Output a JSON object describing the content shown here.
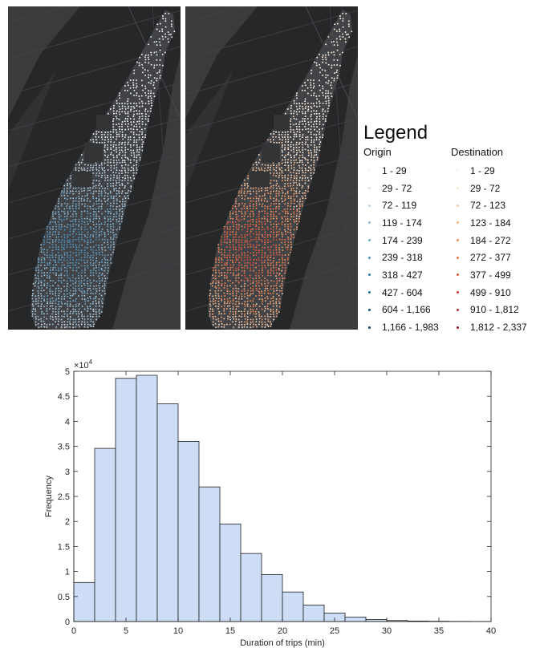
{
  "legend": {
    "title": "Legend",
    "origin": {
      "header": "Origin",
      "bins": [
        "1 - 29",
        "29 - 72",
        "72 - 119",
        "119 - 174",
        "174 - 239",
        "239 - 318",
        "318 - 427",
        "427 - 604",
        "604 - 1,166",
        "1,166 - 1,983"
      ],
      "colors": [
        "#f2f5f8",
        "#d6e4ee",
        "#b6d2e4",
        "#93c0d8",
        "#6fa9cd",
        "#4d94c0",
        "#2f7eb0",
        "#1c679b",
        "#12517f",
        "#0b3f67"
      ]
    },
    "destination": {
      "header": "Destination",
      "bins": [
        "1 - 29",
        "29 - 72",
        "72 - 123",
        "123 - 184",
        "184 - 272",
        "272 - 377",
        "377 - 499",
        "499 - 910",
        "910 - 1,812",
        "1,812 - 2,337"
      ],
      "colors": [
        "#fdf3e8",
        "#fbe3cc",
        "#f8cda9",
        "#f5b183",
        "#f0935f",
        "#e8734a",
        "#da553a",
        "#c63b2e",
        "#ad2523",
        "#8e141b"
      ]
    }
  },
  "chart_data": {
    "type": "bar",
    "xlabel": "Duration of trips (min)",
    "ylabel": "Frequency",
    "exponent_label": "×10",
    "exponent": "4",
    "bar_color": "#ccddf5",
    "bin_edges": [
      0,
      2,
      4,
      6,
      8,
      10,
      12,
      14,
      16,
      18,
      20,
      22,
      24,
      26,
      28,
      30,
      32,
      34,
      36,
      38,
      40
    ],
    "values": [
      7800,
      34600,
      48600,
      49200,
      43500,
      36000,
      26900,
      19500,
      13600,
      9400,
      5900,
      3300,
      1700,
      900,
      400,
      200,
      100,
      60,
      30,
      10
    ],
    "xlim": [
      0,
      40
    ],
    "ylim": [
      0,
      50000
    ],
    "xticks": [
      "0",
      "5",
      "10",
      "15",
      "20",
      "25",
      "30",
      "35",
      "40"
    ],
    "yticks": [
      "0",
      "0.5",
      "1",
      "1.5",
      "2",
      "2.5",
      "3",
      "3.5",
      "4",
      "4.5",
      "5"
    ]
  }
}
